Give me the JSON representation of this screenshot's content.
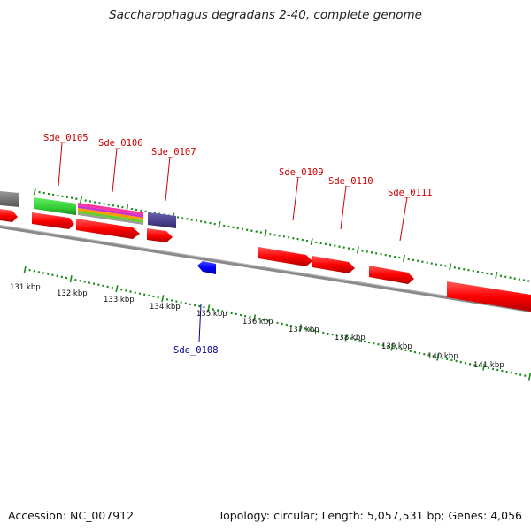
{
  "title": "Saccharophagus degradans 2-40, complete genome",
  "footer": {
    "accession": "Accession: NC_007912",
    "summary": "Topology: circular; Length: 5,057,531 bp; Genes: 4,056"
  },
  "colors": {
    "background": "#ffffff",
    "forward_gene": "#ff0000",
    "reverse_gene": "#0000ff",
    "feature_green": "#33cc33",
    "feature_purple": "#4a3f8a",
    "feature_gray": "#888888",
    "ticks": "#1a8a1a",
    "backbone": "#888888",
    "label_forward": "#cc0000",
    "label_reverse": "#000099"
  },
  "genome_map": {
    "scale_labels": [
      "131 kbp",
      "132 kbp",
      "133 kbp",
      "134 kbp",
      "135 kbp",
      "136 kbp",
      "137 kbp",
      "138 kbp",
      "139 kbp",
      "140 kbp",
      "141 kbp"
    ],
    "gene_labels": [
      {
        "name": "Sde_0105",
        "strand": "forward"
      },
      {
        "name": "Sde_0106",
        "strand": "forward"
      },
      {
        "name": "Sde_0107",
        "strand": "forward"
      },
      {
        "name": "Sde_0109",
        "strand": "forward"
      },
      {
        "name": "Sde_0110",
        "strand": "forward"
      },
      {
        "name": "Sde_0111",
        "strand": "forward"
      },
      {
        "name": "Sde_0108",
        "strand": "reverse"
      }
    ]
  }
}
